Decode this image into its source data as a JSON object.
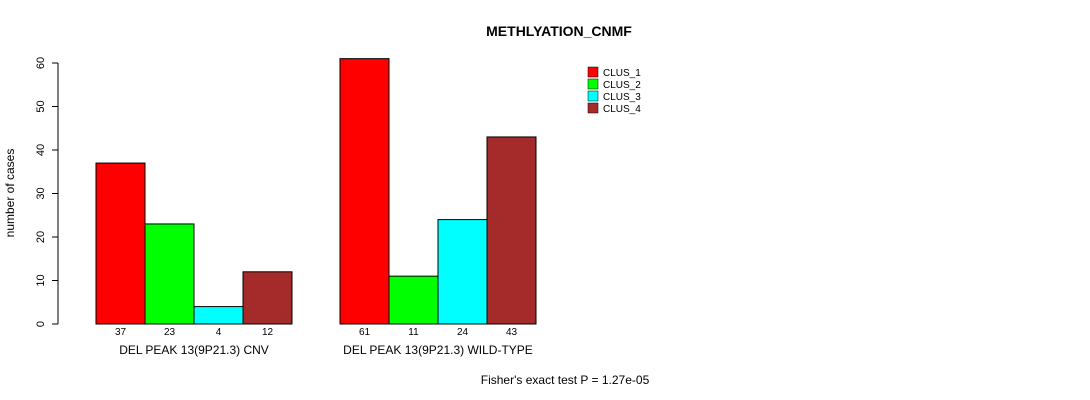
{
  "chart_data": {
    "type": "bar",
    "title": "METHLYATION_CNMF",
    "ylabel": "number of cases",
    "xlabel": "",
    "ylim": [
      0,
      60
    ],
    "yticks": [
      0,
      10,
      20,
      30,
      40,
      50,
      60
    ],
    "groups": [
      "DEL PEAK 13(9P21.3) CNV",
      "DEL PEAK 13(9P21.3) WILD-TYPE"
    ],
    "series": [
      {
        "name": "CLUS_1",
        "color": "#ff0000",
        "values": [
          37,
          61
        ]
      },
      {
        "name": "CLUS_2",
        "color": "#00ff00",
        "values": [
          23,
          11
        ]
      },
      {
        "name": "CLUS_3",
        "color": "#00ffff",
        "values": [
          4,
          24
        ]
      },
      {
        "name": "CLUS_4",
        "color": "#a52a2a",
        "values": [
          12,
          43
        ]
      }
    ],
    "legend_position": "top-right",
    "annotation": "Fisher's exact test P = 1.27e-05"
  }
}
